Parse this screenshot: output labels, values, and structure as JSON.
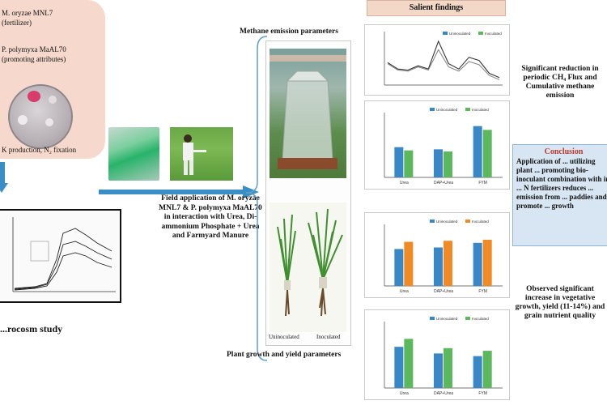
{
  "microbes": {
    "line1": "M. oryzae MNL7",
    "line2": "(fertilizer)",
    "line3": "P. polymyxa MaAL70",
    "line4": "(promoting attributes)",
    "line5": "K production, N₂ fixation"
  },
  "lab_study": {
    "label": "...rocosm study"
  },
  "field": {
    "text": "Field application of M. oryzae MNL7 & P. polymyxa MaAL70 in interaction with Urea, Di-ammonium Phosphate + Urea and Farmyard Manure"
  },
  "middle": {
    "methane_label": "Methane emission parameters",
    "growth_label": "Plant growth and yield parameters",
    "uninoculated": "Uninoculated",
    "inoculated": "Inoculated"
  },
  "findings": {
    "header": "Salient findings",
    "finding1": "Significant reduction in periodic CH₄ Flux and Cumulative methane emission",
    "finding3": "Observed significant increase in vegetative growth, yield (11-14%) and grain nutrient quality"
  },
  "conclusion": {
    "title": "Conclusion",
    "text": "Application of ... utilizing plant ... promoting bio-inoculant combination with in ... N fertilizers reduces ... emission from ... paddies and promote ... growth"
  },
  "colors": {
    "uninoculated": "#3a87c8",
    "inoculated_green": "#5cb85c",
    "inoculated_orange": "#f08a24",
    "arrow": "#3a8ec6"
  },
  "chart_data": [
    {
      "type": "line",
      "legend": [
        "Uninoculated",
        "Inoculated"
      ],
      "series": [
        {
          "name": "Uninoculated",
          "values": [
            42,
            30,
            28,
            36,
            30,
            82,
            40,
            30,
            52,
            46,
            22,
            14
          ]
        },
        {
          "name": "Inoculated",
          "values": [
            40,
            28,
            26,
            34,
            28,
            66,
            34,
            26,
            44,
            38,
            18,
            10
          ]
        }
      ],
      "ylim": [
        0,
        100
      ]
    },
    {
      "type": "bar",
      "legend": [
        "Uninoculated",
        "Inoculated"
      ],
      "categories": [
        "Urea",
        "DAP+Urea",
        "FYM"
      ],
      "series": [
        {
          "name": "Uninoculated",
          "values": [
            56,
            52,
            95
          ]
        },
        {
          "name": "Inoculated",
          "values": [
            50,
            48,
            88
          ]
        }
      ],
      "ylim": [
        0,
        120
      ]
    },
    {
      "type": "bar",
      "legend": [
        "Uninoculated",
        "Inoculated"
      ],
      "categories": [
        "Urea",
        "DAP+Urea",
        "FYM"
      ],
      "series": [
        {
          "name": "Uninoculated",
          "values": [
            72,
            75,
            84
          ]
        },
        {
          "name": "Inoculated",
          "values": [
            86,
            88,
            90
          ]
        }
      ],
      "ylim": [
        0,
        120
      ]
    },
    {
      "type": "bar",
      "legend": [
        "Uninoculated",
        "Inoculated"
      ],
      "categories": [
        "Urea",
        "DAP+Urea",
        "FYM"
      ],
      "series": [
        {
          "name": "Uninoculated",
          "values": [
            62,
            52,
            48
          ]
        },
        {
          "name": "Inoculated",
          "values": [
            74,
            60,
            56
          ]
        }
      ],
      "ylim": [
        0,
        100
      ]
    }
  ]
}
